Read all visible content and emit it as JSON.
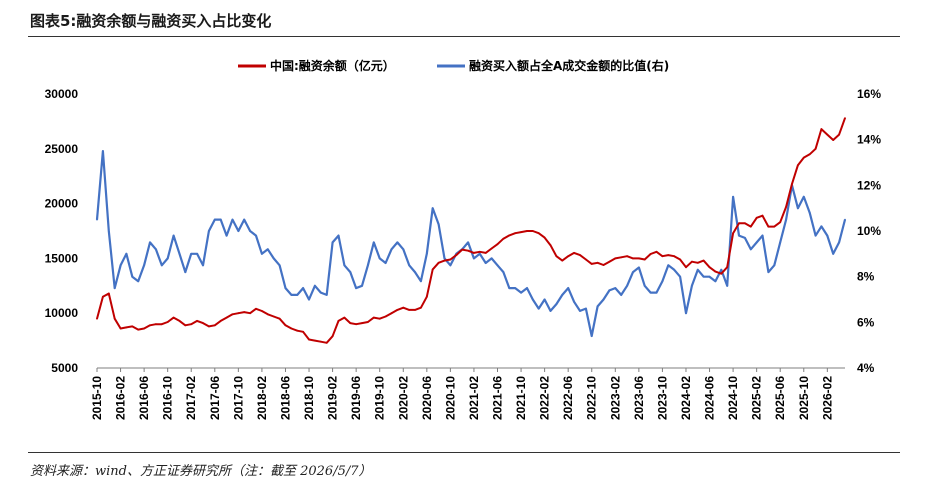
{
  "figure_title": "图表5:融资余额与融资买入占比变化",
  "source_note": "资料来源：wind、方正证券研究所（注：截至 2026/5/7）",
  "colors": {
    "financing_balance": "#c00000",
    "buy_ratio": "#4472c4"
  },
  "chart_data": {
    "type": "line",
    "legend_position": "top",
    "grid": false,
    "x_start": "2015-10",
    "x_end": "2026-05",
    "x_tick_labels": [
      "2015-10",
      "2016-02",
      "2016-06",
      "2016-10",
      "2017-02",
      "2017-06",
      "2017-10",
      "2018-02",
      "2018-06",
      "2018-10",
      "2019-02",
      "2019-06",
      "2019-10",
      "2020-02",
      "2020-06",
      "2020-10",
      "2021-02",
      "2021-06",
      "2021-10",
      "2022-02",
      "2022-06",
      "2022-10",
      "2023-02",
      "2023-06",
      "2023-10",
      "2024-02",
      "2024-06",
      "2024-10",
      "2025-02",
      "2025-06",
      "2025-10",
      "2026-02"
    ],
    "y_left": {
      "range": [
        5000,
        30000
      ],
      "ticks": [
        "5000",
        "10000",
        "15000",
        "20000",
        "25000",
        "30000"
      ]
    },
    "y_right": {
      "range": [
        4,
        16
      ],
      "ticks": [
        "4%",
        "6%",
        "8%",
        "10%",
        "12%",
        "14%",
        "16%"
      ]
    },
    "series": [
      {
        "name": "中国:融资余额（亿元）",
        "axis": "left",
        "points": [
          [
            "2015-10",
            9500
          ],
          [
            "2015-11",
            11500
          ],
          [
            "2015-12",
            11800
          ],
          [
            "2016-01",
            9500
          ],
          [
            "2016-02",
            8600
          ],
          [
            "2016-03",
            8700
          ],
          [
            "2016-04",
            8800
          ],
          [
            "2016-05",
            8500
          ],
          [
            "2016-06",
            8600
          ],
          [
            "2016-07",
            8900
          ],
          [
            "2016-08",
            9000
          ],
          [
            "2016-09",
            9000
          ],
          [
            "2016-10",
            9200
          ],
          [
            "2016-11",
            9600
          ],
          [
            "2016-12",
            9300
          ],
          [
            "2017-01",
            8900
          ],
          [
            "2017-02",
            9000
          ],
          [
            "2017-03",
            9300
          ],
          [
            "2017-04",
            9100
          ],
          [
            "2017-05",
            8800
          ],
          [
            "2017-06",
            8900
          ],
          [
            "2017-07",
            9300
          ],
          [
            "2017-08",
            9600
          ],
          [
            "2017-09",
            9900
          ],
          [
            "2017-10",
            10000
          ],
          [
            "2017-11",
            10100
          ],
          [
            "2017-12",
            10000
          ],
          [
            "2018-01",
            10400
          ],
          [
            "2018-02",
            10200
          ],
          [
            "2018-03",
            9900
          ],
          [
            "2018-04",
            9700
          ],
          [
            "2018-05",
            9500
          ],
          [
            "2018-06",
            8900
          ],
          [
            "2018-07",
            8600
          ],
          [
            "2018-08",
            8400
          ],
          [
            "2018-09",
            8300
          ],
          [
            "2018-10",
            7600
          ],
          [
            "2018-11",
            7500
          ],
          [
            "2018-12",
            7400
          ],
          [
            "2019-01",
            7300
          ],
          [
            "2019-02",
            7900
          ],
          [
            "2019-03",
            9300
          ],
          [
            "2019-04",
            9600
          ],
          [
            "2019-05",
            9100
          ],
          [
            "2019-06",
            9000
          ],
          [
            "2019-07",
            9100
          ],
          [
            "2019-08",
            9200
          ],
          [
            "2019-09",
            9600
          ],
          [
            "2019-10",
            9500
          ],
          [
            "2019-11",
            9700
          ],
          [
            "2019-12",
            10000
          ],
          [
            "2020-01",
            10300
          ],
          [
            "2020-02",
            10500
          ],
          [
            "2020-03",
            10300
          ],
          [
            "2020-04",
            10300
          ],
          [
            "2020-05",
            10500
          ],
          [
            "2020-06",
            11500
          ],
          [
            "2020-07",
            14000
          ],
          [
            "2020-08",
            14600
          ],
          [
            "2020-09",
            14800
          ],
          [
            "2020-10",
            14900
          ],
          [
            "2020-11",
            15300
          ],
          [
            "2020-12",
            15800
          ],
          [
            "2021-01",
            15700
          ],
          [
            "2021-02",
            15500
          ],
          [
            "2021-03",
            15600
          ],
          [
            "2021-04",
            15500
          ],
          [
            "2021-05",
            15900
          ],
          [
            "2021-06",
            16300
          ],
          [
            "2021-07",
            16800
          ],
          [
            "2021-08",
            17100
          ],
          [
            "2021-09",
            17300
          ],
          [
            "2021-10",
            17400
          ],
          [
            "2021-11",
            17500
          ],
          [
            "2021-12",
            17500
          ],
          [
            "2022-01",
            17300
          ],
          [
            "2022-02",
            16900
          ],
          [
            "2022-03",
            16200
          ],
          [
            "2022-04",
            15200
          ],
          [
            "2022-05",
            14800
          ],
          [
            "2022-06",
            15200
          ],
          [
            "2022-07",
            15500
          ],
          [
            "2022-08",
            15300
          ],
          [
            "2022-09",
            14900
          ],
          [
            "2022-10",
            14500
          ],
          [
            "2022-11",
            14600
          ],
          [
            "2022-12",
            14400
          ],
          [
            "2023-01",
            14700
          ],
          [
            "2023-02",
            15000
          ],
          [
            "2023-03",
            15100
          ],
          [
            "2023-04",
            15200
          ],
          [
            "2023-05",
            15000
          ],
          [
            "2023-06",
            15000
          ],
          [
            "2023-07",
            14900
          ],
          [
            "2023-08",
            15400
          ],
          [
            "2023-09",
            15600
          ],
          [
            "2023-10",
            15200
          ],
          [
            "2023-11",
            15300
          ],
          [
            "2023-12",
            15200
          ],
          [
            "2024-01",
            14900
          ],
          [
            "2024-02",
            14200
          ],
          [
            "2024-03",
            14700
          ],
          [
            "2024-04",
            14600
          ],
          [
            "2024-05",
            14800
          ],
          [
            "2024-06",
            14200
          ],
          [
            "2024-07",
            13800
          ],
          [
            "2024-08",
            13600
          ],
          [
            "2024-09",
            14200
          ],
          [
            "2024-10",
            17300
          ],
          [
            "2024-11",
            18200
          ],
          [
            "2024-12",
            18200
          ],
          [
            "2025-01",
            17900
          ],
          [
            "2025-02",
            18700
          ],
          [
            "2025-03",
            18900
          ],
          [
            "2025-04",
            17900
          ],
          [
            "2025-05",
            17900
          ],
          [
            "2025-06",
            18300
          ],
          [
            "2025-07",
            19700
          ],
          [
            "2025-08",
            21800
          ],
          [
            "2025-09",
            23500
          ],
          [
            "2025-10",
            24200
          ],
          [
            "2025-11",
            24500
          ],
          [
            "2025-12",
            25000
          ],
          [
            "2026-01",
            26800
          ],
          [
            "2026-02",
            26300
          ],
          [
            "2026-03",
            25800
          ],
          [
            "2026-04",
            26300
          ],
          [
            "2026-05",
            27800
          ]
        ]
      },
      {
        "name": "融资买入额占全A成交金额的比值(右)",
        "axis": "right",
        "points": [
          [
            "2015-10",
            10.5
          ],
          [
            "2015-11",
            13.5
          ],
          [
            "2015-12",
            10.0
          ],
          [
            "2016-01",
            7.5
          ],
          [
            "2016-02",
            8.5
          ],
          [
            "2016-03",
            9.0
          ],
          [
            "2016-04",
            8.0
          ],
          [
            "2016-05",
            7.8
          ],
          [
            "2016-06",
            8.5
          ],
          [
            "2016-07",
            9.5
          ],
          [
            "2016-08",
            9.2
          ],
          [
            "2016-09",
            8.5
          ],
          [
            "2016-10",
            8.8
          ],
          [
            "2016-11",
            9.8
          ],
          [
            "2016-12",
            9.0
          ],
          [
            "2017-01",
            8.2
          ],
          [
            "2017-02",
            9.0
          ],
          [
            "2017-03",
            9.0
          ],
          [
            "2017-04",
            8.5
          ],
          [
            "2017-05",
            10.0
          ],
          [
            "2017-06",
            10.5
          ],
          [
            "2017-07",
            10.5
          ],
          [
            "2017-08",
            9.8
          ],
          [
            "2017-09",
            10.5
          ],
          [
            "2017-10",
            10.0
          ],
          [
            "2017-11",
            10.5
          ],
          [
            "2017-12",
            10.0
          ],
          [
            "2018-01",
            9.8
          ],
          [
            "2018-02",
            9.0
          ],
          [
            "2018-03",
            9.2
          ],
          [
            "2018-04",
            8.8
          ],
          [
            "2018-05",
            8.5
          ],
          [
            "2018-06",
            7.5
          ],
          [
            "2018-07",
            7.2
          ],
          [
            "2018-08",
            7.2
          ],
          [
            "2018-09",
            7.5
          ],
          [
            "2018-10",
            7.0
          ],
          [
            "2018-11",
            7.6
          ],
          [
            "2018-12",
            7.3
          ],
          [
            "2019-01",
            7.2
          ],
          [
            "2019-02",
            9.5
          ],
          [
            "2019-03",
            9.8
          ],
          [
            "2019-04",
            8.5
          ],
          [
            "2019-05",
            8.2
          ],
          [
            "2019-06",
            7.5
          ],
          [
            "2019-07",
            7.6
          ],
          [
            "2019-08",
            8.5
          ],
          [
            "2019-09",
            9.5
          ],
          [
            "2019-10",
            8.8
          ],
          [
            "2019-11",
            8.6
          ],
          [
            "2019-12",
            9.2
          ],
          [
            "2020-01",
            9.5
          ],
          [
            "2020-02",
            9.2
          ],
          [
            "2020-03",
            8.5
          ],
          [
            "2020-04",
            8.2
          ],
          [
            "2020-05",
            7.8
          ],
          [
            "2020-06",
            9.0
          ],
          [
            "2020-07",
            11.0
          ],
          [
            "2020-08",
            10.3
          ],
          [
            "2020-09",
            8.8
          ],
          [
            "2020-10",
            8.5
          ],
          [
            "2020-11",
            9.0
          ],
          [
            "2020-12",
            9.2
          ],
          [
            "2021-01",
            9.5
          ],
          [
            "2021-02",
            8.8
          ],
          [
            "2021-03",
            9.0
          ],
          [
            "2021-04",
            8.6
          ],
          [
            "2021-05",
            8.8
          ],
          [
            "2021-06",
            8.5
          ],
          [
            "2021-07",
            8.2
          ],
          [
            "2021-08",
            7.5
          ],
          [
            "2021-09",
            7.5
          ],
          [
            "2021-10",
            7.3
          ],
          [
            "2021-11",
            7.5
          ],
          [
            "2021-12",
            7.0
          ],
          [
            "2022-01",
            6.6
          ],
          [
            "2022-02",
            7.0
          ],
          [
            "2022-03",
            6.5
          ],
          [
            "2022-04",
            6.8
          ],
          [
            "2022-05",
            7.2
          ],
          [
            "2022-06",
            7.5
          ],
          [
            "2022-07",
            6.9
          ],
          [
            "2022-08",
            6.5
          ],
          [
            "2022-09",
            6.6
          ],
          [
            "2022-10",
            5.4
          ],
          [
            "2022-11",
            6.7
          ],
          [
            "2022-12",
            7.0
          ],
          [
            "2023-01",
            7.4
          ],
          [
            "2023-02",
            7.5
          ],
          [
            "2023-03",
            7.2
          ],
          [
            "2023-04",
            7.6
          ],
          [
            "2023-05",
            8.2
          ],
          [
            "2023-06",
            8.4
          ],
          [
            "2023-07",
            7.6
          ],
          [
            "2023-08",
            7.3
          ],
          [
            "2023-09",
            7.3
          ],
          [
            "2023-10",
            7.8
          ],
          [
            "2023-11",
            8.5
          ],
          [
            "2023-12",
            8.3
          ],
          [
            "2024-01",
            8.0
          ],
          [
            "2024-02",
            6.4
          ],
          [
            "2024-03",
            7.6
          ],
          [
            "2024-04",
            8.3
          ],
          [
            "2024-05",
            8.0
          ],
          [
            "2024-06",
            8.0
          ],
          [
            "2024-07",
            7.8
          ],
          [
            "2024-08",
            8.3
          ],
          [
            "2024-09",
            7.6
          ],
          [
            "2024-10",
            11.5
          ],
          [
            "2024-11",
            9.8
          ],
          [
            "2024-12",
            9.7
          ],
          [
            "2025-01",
            9.2
          ],
          [
            "2025-02",
            9.5
          ],
          [
            "2025-03",
            9.8
          ],
          [
            "2025-04",
            8.2
          ],
          [
            "2025-05",
            8.5
          ],
          [
            "2025-06",
            9.5
          ],
          [
            "2025-07",
            10.5
          ],
          [
            "2025-08",
            12.0
          ],
          [
            "2025-09",
            11.0
          ],
          [
            "2025-10",
            11.5
          ],
          [
            "2025-11",
            10.8
          ],
          [
            "2025-12",
            9.8
          ],
          [
            "2026-01",
            10.2
          ],
          [
            "2026-02",
            9.8
          ],
          [
            "2026-03",
            9.0
          ],
          [
            "2026-04",
            9.5
          ],
          [
            "2026-05",
            10.5
          ]
        ]
      }
    ]
  }
}
